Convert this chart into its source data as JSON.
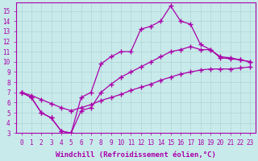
{
  "xlabel": "Windchill (Refroidissement éolien,°C)",
  "bg_color": "#c8eaea",
  "line_color": "#aa00aa",
  "grid_color": "#b0d4d4",
  "xlim": [
    -0.5,
    23.5
  ],
  "ylim": [
    3,
    15.8
  ],
  "xticks": [
    0,
    1,
    2,
    3,
    4,
    5,
    6,
    7,
    8,
    9,
    10,
    11,
    12,
    13,
    14,
    15,
    16,
    17,
    18,
    19,
    20,
    21,
    22,
    23
  ],
  "yticks": [
    3,
    4,
    5,
    6,
    7,
    8,
    9,
    10,
    11,
    12,
    13,
    14,
    15
  ],
  "series1_x": [
    0,
    1,
    2,
    3,
    4,
    5,
    6,
    7,
    8,
    9,
    10,
    11,
    12,
    13,
    14,
    15,
    16,
    17,
    18,
    19,
    20,
    21,
    22,
    23
  ],
  "series1_y": [
    7.0,
    6.5,
    5.0,
    4.5,
    3.2,
    3.0,
    6.5,
    7.0,
    9.8,
    10.5,
    11.0,
    11.0,
    13.2,
    13.5,
    14.0,
    15.5,
    14.0,
    13.7,
    11.7,
    11.2,
    10.4,
    10.3,
    10.2,
    10.0
  ],
  "series2_x": [
    0,
    1,
    2,
    3,
    4,
    5,
    6,
    7,
    8,
    9,
    10,
    11,
    12,
    13,
    14,
    15,
    16,
    17,
    18,
    19,
    20,
    21,
    22,
    23
  ],
  "series2_y": [
    7.0,
    6.5,
    5.0,
    4.5,
    3.2,
    3.0,
    5.2,
    5.5,
    7.0,
    7.8,
    8.5,
    9.0,
    9.5,
    10.0,
    10.5,
    11.0,
    11.2,
    11.5,
    11.2,
    11.2,
    10.5,
    10.4,
    10.2,
    10.0
  ],
  "series3_x": [
    0,
    1,
    2,
    3,
    4,
    5,
    6,
    7,
    8,
    9,
    10,
    11,
    12,
    13,
    14,
    15,
    16,
    17,
    18,
    19,
    20,
    21,
    22,
    23
  ],
  "series3_y": [
    7.0,
    6.7,
    6.3,
    5.9,
    5.5,
    5.2,
    5.5,
    5.8,
    6.2,
    6.5,
    6.8,
    7.2,
    7.5,
    7.8,
    8.2,
    8.5,
    8.8,
    9.0,
    9.2,
    9.3,
    9.3,
    9.3,
    9.4,
    9.5
  ],
  "font_family": "monospace",
  "tick_fontsize": 5.5,
  "label_fontsize": 6.5
}
